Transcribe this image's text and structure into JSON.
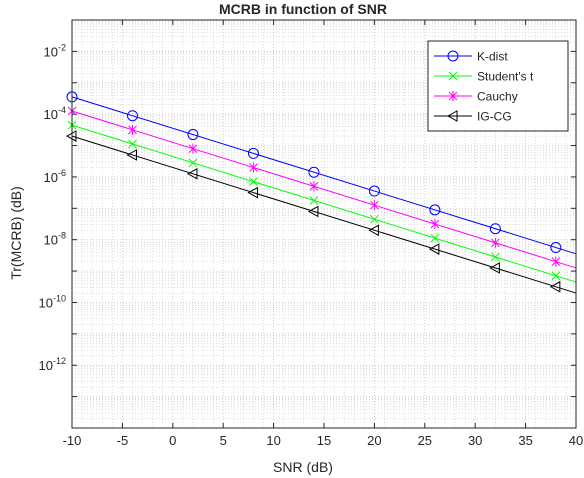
{
  "chart_data": {
    "type": "line",
    "title": "MCRB in function of SNR",
    "xlabel": "SNR (dB)",
    "ylabel": "Tr(MCRB) (dB)",
    "xlim": [
      -10,
      40
    ],
    "ylim_exponent": [
      -14,
      -1
    ],
    "yscale": "log",
    "grid": true,
    "minor_grid": true,
    "legend_position": "top-right",
    "x_ticks": [
      "-10",
      "-5",
      "0",
      "5",
      "10",
      "15",
      "20",
      "25",
      "30",
      "35",
      "40"
    ],
    "y_ticks": [
      {
        "base": "10",
        "exp": "-2",
        "value": -2
      },
      {
        "base": "10",
        "exp": "-4",
        "value": -4
      },
      {
        "base": "10",
        "exp": "-6",
        "value": -6
      },
      {
        "base": "10",
        "exp": "-8",
        "value": -8
      },
      {
        "base": "10",
        "exp": "-10",
        "value": -10
      },
      {
        "base": "10",
        "exp": "-12",
        "value": -12
      }
    ],
    "x": [
      -10,
      40
    ],
    "markers_x": [
      -10,
      -4,
      2,
      8,
      14,
      20,
      26,
      32,
      38
    ],
    "series": [
      {
        "name": "K-dist",
        "color": "#0000ff",
        "marker": "circle",
        "log10_values": [
          -3.45,
          -8.45
        ]
      },
      {
        "name": "Student's t",
        "color": "#00ff00",
        "marker": "x",
        "log10_values": [
          -4.35,
          -9.35
        ]
      },
      {
        "name": "Cauchy",
        "color": "#ff00ff",
        "marker": "asterisk",
        "log10_values": [
          -3.9,
          -8.9
        ]
      },
      {
        "name": "IG-CG",
        "color": "#000000",
        "marker": "triangle-left",
        "log10_values": [
          -4.7,
          -9.7
        ]
      }
    ]
  }
}
